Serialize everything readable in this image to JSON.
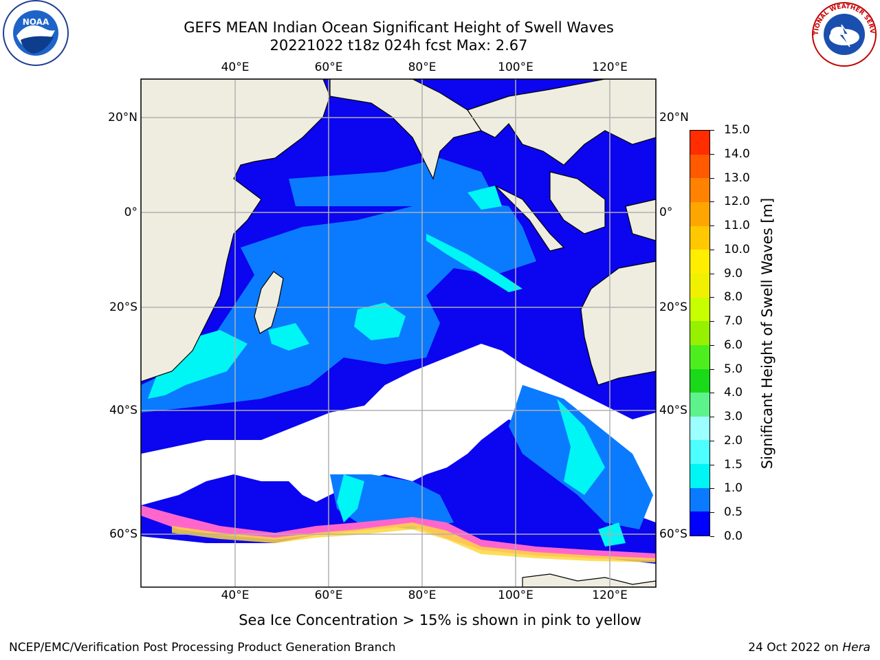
{
  "title": {
    "line1": "GEFS MEAN Indian Ocean Significant Height of Swell Waves",
    "line2": "20221022 t18z 024h fcst   Max: 2.67"
  },
  "map": {
    "lon_labels": [
      "40°E",
      "60°E",
      "80°E",
      "100°E",
      "120°E"
    ],
    "lat_labels": [
      "20°N",
      "0°",
      "20°S",
      "40°S",
      "60°S"
    ],
    "colors": {
      "ocean_base": "#0b05f0",
      "land": "#efede0",
      "missing": "#ffffff",
      "grid": "#b0b0b0"
    }
  },
  "colorbar": {
    "label": "Significant Height of Swell Waves [m]",
    "ticks": [
      "0.0",
      "0.5",
      "1.0",
      "1.5",
      "2.0",
      "3.0",
      "4.0",
      "5.0",
      "6.0",
      "7.0",
      "8.0",
      "9.0",
      "10.0",
      "11.0",
      "12.0",
      "13.0",
      "14.0",
      "15.0"
    ],
    "colors": [
      "#0000ff",
      "#0a7bff",
      "#00f5f5",
      "#4dffff",
      "#9cffff",
      "#5ef28c",
      "#19d919",
      "#4cef1d",
      "#96f000",
      "#c8ff00",
      "#f0f000",
      "#ffee00",
      "#ffc800",
      "#ffa500",
      "#ff8200",
      "#ff5a00",
      "#ff2d00"
    ]
  },
  "footnote": "Sea Ice Concentration > 15% is shown in pink to yellow",
  "credit": "NCEP/EMC/Verification Post Processing Product Generation Branch",
  "stamp": {
    "date": "24 Oct 2022 on",
    "host": "Hera"
  },
  "logos": {
    "left": "NOAA",
    "right": "NATIONAL WEATHER SERVICE"
  }
}
